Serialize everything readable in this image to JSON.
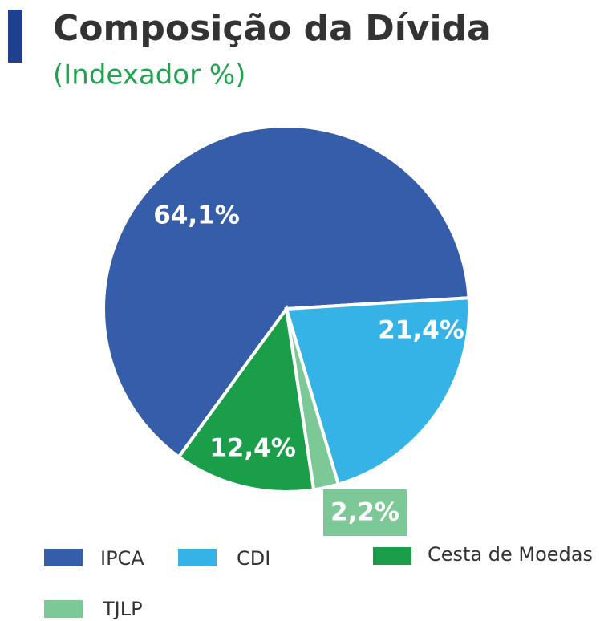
{
  "chart_data": {
    "type": "pie",
    "title": "Composição da Dívida",
    "subtitle": "(Indexador %)",
    "categories": [
      "IPCA",
      "CDI",
      "Cesta de Moedas",
      "TJLP"
    ],
    "values": [
      64.1,
      21.4,
      12.4,
      2.2
    ],
    "value_labels": [
      "64,1%",
      "21,4%",
      "12,4%",
      "2,2%"
    ],
    "colors": [
      "#355da9",
      "#36b3e6",
      "#1a9e4a",
      "#7cc896"
    ]
  }
}
